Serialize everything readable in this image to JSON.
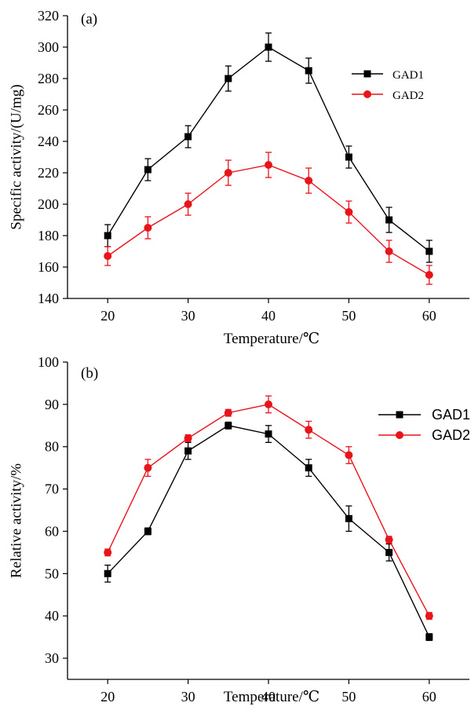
{
  "chart_data": [
    {
      "type": "line",
      "panel_label": "(a)",
      "xlabel": "Temperature/℃",
      "ylabel": "Specific activity/(U/mg)",
      "x": [
        20,
        25,
        30,
        35,
        40,
        45,
        50,
        55,
        60
      ],
      "xlim": [
        15,
        65
      ],
      "ylim": [
        140,
        320
      ],
      "xticks": [
        20,
        30,
        40,
        50,
        60
      ],
      "yticks": [
        140,
        160,
        180,
        200,
        220,
        240,
        260,
        280,
        300,
        320
      ],
      "legend_position": "top-right",
      "grid": false,
      "series": [
        {
          "name": "GAD1",
          "color": "#000000",
          "marker": "square",
          "values": [
            180,
            222,
            243,
            280,
            300,
            285,
            230,
            190,
            170
          ],
          "errors": [
            7,
            7,
            7,
            8,
            9,
            8,
            7,
            8,
            7
          ]
        },
        {
          "name": "GAD2",
          "color": "#e8141c",
          "marker": "circle",
          "values": [
            167,
            185,
            200,
            220,
            225,
            215,
            195,
            170,
            155
          ],
          "errors": [
            6,
            7,
            7,
            8,
            8,
            8,
            7,
            7,
            6
          ]
        }
      ]
    },
    {
      "type": "line",
      "panel_label": "(b)",
      "xlabel": "Temperature/℃",
      "ylabel": "Relative activity/%",
      "x": [
        20,
        25,
        30,
        35,
        40,
        45,
        50,
        55,
        60
      ],
      "xlim": [
        15,
        65
      ],
      "ylim": [
        25,
        100
      ],
      "xticks": [
        20,
        30,
        40,
        50,
        60
      ],
      "yticks": [
        30,
        40,
        50,
        60,
        70,
        80,
        90,
        100
      ],
      "legend_position": "top-right",
      "grid": false,
      "series": [
        {
          "name": "GAD1",
          "color": "#000000",
          "marker": "square",
          "values": [
            50,
            60,
            79,
            85,
            83,
            75,
            63,
            55,
            35
          ],
          "errors": [
            2,
            0.8,
            2,
            0.8,
            2,
            2,
            3,
            2,
            0.8
          ]
        },
        {
          "name": "GAD2",
          "color": "#e8141c",
          "marker": "circle",
          "values": [
            55,
            75,
            82,
            88,
            90,
            84,
            78,
            58,
            40
          ],
          "errors": [
            0.8,
            2,
            0.8,
            0.8,
            2,
            2,
            2,
            0.8,
            0.8
          ]
        }
      ]
    }
  ]
}
